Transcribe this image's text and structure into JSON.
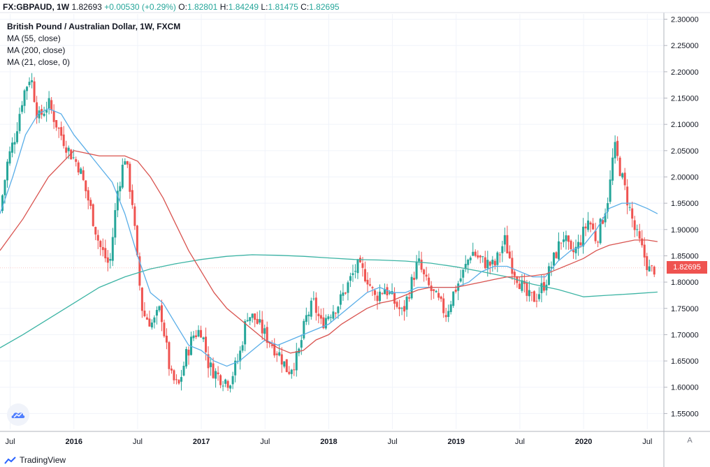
{
  "header": {
    "symbol": "FX:GBPAUD, 1W",
    "last": "1.82693",
    "change": "+0.00530 (+0.29%)",
    "o_label": "O:",
    "o_value": "1.82801",
    "h_label": "H:",
    "h_value": "1.84249",
    "l_label": "L:",
    "l_value": "1.81475",
    "c_label": "C:",
    "c_value": "1.82695"
  },
  "legend": {
    "title": "British Pound / Australian Dollar, 1W, FXCM",
    "ma1": "MA (55, close)",
    "ma2": "MA (200, close)",
    "ma3": "MA (21, close, 0)"
  },
  "price_tag": "1.82695",
  "axis_button": "A",
  "brand": "TradingView",
  "colors": {
    "up": "#26a69a",
    "down": "#ef5350",
    "ma55": "#5aaee8",
    "ma200": "#3cb4a4",
    "ma21": "#d9534f"
  },
  "chart_data": {
    "type": "candlestick",
    "title": "British Pound / Australian Dollar, 1W, FXCM",
    "ylim": [
      1.52,
      2.31
    ],
    "y_ticks": [
      "2.30000",
      "2.25000",
      "2.20000",
      "2.15000",
      "2.10000",
      "2.05000",
      "2.00000",
      "1.95000",
      "1.90000",
      "1.85000",
      "1.80000",
      "1.75000",
      "1.70000",
      "1.65000",
      "1.60000",
      "1.55000"
    ],
    "x_ticks": [
      "Jul",
      "2016",
      "Jul",
      "2017",
      "Jul",
      "2018",
      "Jul",
      "2019",
      "Jul",
      "2020",
      "Jul"
    ],
    "xlim": [
      2015.42,
      2020.63
    ],
    "x_tick_positions": [
      2015.5,
      2016.0,
      2016.5,
      2017.0,
      2017.5,
      2018.0,
      2018.5,
      2019.0,
      2019.5,
      2020.0,
      2020.5
    ],
    "close_path": [
      [
        2015.42,
        1.935
      ],
      [
        2015.48,
        2.03
      ],
      [
        2015.54,
        2.08
      ],
      [
        2015.6,
        2.155
      ],
      [
        2015.66,
        2.195
      ],
      [
        2015.72,
        2.11
      ],
      [
        2015.8,
        2.14
      ],
      [
        2015.88,
        2.09
      ],
      [
        2015.96,
        2.05
      ],
      [
        2016.04,
        2.02
      ],
      [
        2016.12,
        1.95
      ],
      [
        2016.2,
        1.87
      ],
      [
        2016.28,
        1.83
      ],
      [
        2016.34,
        1.97
      ],
      [
        2016.4,
        2.04
      ],
      [
        2016.46,
        1.95
      ],
      [
        2016.5,
        1.83
      ],
      [
        2016.54,
        1.74
      ],
      [
        2016.62,
        1.72
      ],
      [
        2016.68,
        1.75
      ],
      [
        2016.76,
        1.62
      ],
      [
        2016.82,
        1.6
      ],
      [
        2016.88,
        1.66
      ],
      [
        2016.94,
        1.7
      ],
      [
        2017.0,
        1.71
      ],
      [
        2017.06,
        1.64
      ],
      [
        2017.14,
        1.62
      ],
      [
        2017.22,
        1.61
      ],
      [
        2017.3,
        1.66
      ],
      [
        2017.36,
        1.74
      ],
      [
        2017.42,
        1.73
      ],
      [
        2017.5,
        1.7
      ],
      [
        2017.56,
        1.68
      ],
      [
        2017.62,
        1.66
      ],
      [
        2017.68,
        1.63
      ],
      [
        2017.76,
        1.66
      ],
      [
        2017.82,
        1.73
      ],
      [
        2017.88,
        1.76
      ],
      [
        2017.94,
        1.72
      ],
      [
        2018.0,
        1.74
      ],
      [
        2018.08,
        1.76
      ],
      [
        2018.16,
        1.8
      ],
      [
        2018.22,
        1.83
      ],
      [
        2018.3,
        1.81
      ],
      [
        2018.36,
        1.77
      ],
      [
        2018.44,
        1.79
      ],
      [
        2018.52,
        1.76
      ],
      [
        2018.58,
        1.74
      ],
      [
        2018.64,
        1.79
      ],
      [
        2018.7,
        1.84
      ],
      [
        2018.76,
        1.8
      ],
      [
        2018.84,
        1.77
      ],
      [
        2018.92,
        1.74
      ],
      [
        2018.98,
        1.78
      ],
      [
        2019.06,
        1.82
      ],
      [
        2019.12,
        1.86
      ],
      [
        2019.2,
        1.84
      ],
      [
        2019.3,
        1.83
      ],
      [
        2019.38,
        1.88
      ],
      [
        2019.44,
        1.83
      ],
      [
        2019.5,
        1.8
      ],
      [
        2019.56,
        1.77
      ],
      [
        2019.62,
        1.77
      ],
      [
        2019.7,
        1.8
      ],
      [
        2019.76,
        1.84
      ],
      [
        2019.84,
        1.89
      ],
      [
        2019.9,
        1.85
      ],
      [
        2019.96,
        1.87
      ],
      [
        2020.04,
        1.92
      ],
      [
        2020.1,
        1.88
      ],
      [
        2020.16,
        1.93
      ],
      [
        2020.2,
        1.97
      ],
      [
        2020.24,
        2.06
      ],
      [
        2020.3,
        2.0
      ],
      [
        2020.34,
        1.96
      ],
      [
        2020.4,
        1.9
      ],
      [
        2020.46,
        1.86
      ],
      [
        2020.52,
        1.82
      ],
      [
        2020.56,
        1.8269
      ]
    ],
    "ma55": [
      [
        2015.42,
        1.93
      ],
      [
        2015.52,
        2.0
      ],
      [
        2015.62,
        2.08
      ],
      [
        2015.72,
        2.12
      ],
      [
        2015.8,
        2.13
      ],
      [
        2015.9,
        2.12
      ],
      [
        2016.0,
        2.08
      ],
      [
        2016.1,
        2.05
      ],
      [
        2016.2,
        2.02
      ],
      [
        2016.3,
        1.99
      ],
      [
        2016.4,
        1.93
      ],
      [
        2016.5,
        1.85
      ],
      [
        2016.6,
        1.78
      ],
      [
        2016.7,
        1.76
      ],
      [
        2016.8,
        1.72
      ],
      [
        2016.9,
        1.68
      ],
      [
        2017.0,
        1.67
      ],
      [
        2017.1,
        1.65
      ],
      [
        2017.2,
        1.64
      ],
      [
        2017.3,
        1.65
      ],
      [
        2017.4,
        1.67
      ],
      [
        2017.5,
        1.69
      ],
      [
        2017.6,
        1.68
      ],
      [
        2017.7,
        1.69
      ],
      [
        2017.8,
        1.7
      ],
      [
        2017.9,
        1.71
      ],
      [
        2018.0,
        1.72
      ],
      [
        2018.1,
        1.74
      ],
      [
        2018.2,
        1.76
      ],
      [
        2018.3,
        1.78
      ],
      [
        2018.4,
        1.79
      ],
      [
        2018.5,
        1.78
      ],
      [
        2018.6,
        1.78
      ],
      [
        2018.7,
        1.79
      ],
      [
        2018.8,
        1.79
      ],
      [
        2018.9,
        1.79
      ],
      [
        2019.0,
        1.79
      ],
      [
        2019.1,
        1.8
      ],
      [
        2019.2,
        1.82
      ],
      [
        2019.3,
        1.83
      ],
      [
        2019.4,
        1.83
      ],
      [
        2019.5,
        1.82
      ],
      [
        2019.6,
        1.81
      ],
      [
        2019.7,
        1.81
      ],
      [
        2019.8,
        1.84
      ],
      [
        2019.9,
        1.86
      ],
      [
        2020.0,
        1.87
      ],
      [
        2020.1,
        1.9
      ],
      [
        2020.2,
        1.94
      ],
      [
        2020.3,
        1.95
      ],
      [
        2020.4,
        1.95
      ],
      [
        2020.5,
        1.94
      ],
      [
        2020.58,
        1.93
      ]
    ],
    "ma200": [
      [
        2015.42,
        1.675
      ],
      [
        2015.6,
        1.7
      ],
      [
        2015.8,
        1.73
      ],
      [
        2016.0,
        1.76
      ],
      [
        2016.2,
        1.79
      ],
      [
        2016.4,
        1.81
      ],
      [
        2016.6,
        1.825
      ],
      [
        2016.8,
        1.835
      ],
      [
        2017.0,
        1.843
      ],
      [
        2017.2,
        1.849
      ],
      [
        2017.4,
        1.852
      ],
      [
        2017.6,
        1.851
      ],
      [
        2017.8,
        1.849
      ],
      [
        2018.0,
        1.846
      ],
      [
        2018.2,
        1.843
      ],
      [
        2018.4,
        1.842
      ],
      [
        2018.6,
        1.84
      ],
      [
        2018.8,
        1.836
      ],
      [
        2019.0,
        1.829
      ],
      [
        2019.2,
        1.82
      ],
      [
        2019.4,
        1.81
      ],
      [
        2019.6,
        1.796
      ],
      [
        2019.8,
        1.786
      ],
      [
        2020.0,
        1.772
      ],
      [
        2020.2,
        1.775
      ],
      [
        2020.4,
        1.778
      ],
      [
        2020.58,
        1.781
      ]
    ],
    "ma21": [
      [
        2015.42,
        1.86
      ],
      [
        2015.6,
        1.92
      ],
      [
        2015.8,
        2.0
      ],
      [
        2016.0,
        2.05
      ],
      [
        2016.2,
        2.04
      ],
      [
        2016.4,
        2.04
      ],
      [
        2016.5,
        2.03
      ],
      [
        2016.6,
        2.0
      ],
      [
        2016.7,
        1.96
      ],
      [
        2016.8,
        1.91
      ],
      [
        2016.9,
        1.86
      ],
      [
        2017.0,
        1.82
      ],
      [
        2017.1,
        1.78
      ],
      [
        2017.2,
        1.75
      ],
      [
        2017.3,
        1.73
      ],
      [
        2017.4,
        1.71
      ],
      [
        2017.5,
        1.69
      ],
      [
        2017.6,
        1.675
      ],
      [
        2017.7,
        1.665
      ],
      [
        2017.8,
        1.67
      ],
      [
        2017.9,
        1.69
      ],
      [
        2018.0,
        1.7
      ],
      [
        2018.1,
        1.72
      ],
      [
        2018.2,
        1.735
      ],
      [
        2018.3,
        1.75
      ],
      [
        2018.4,
        1.76
      ],
      [
        2018.5,
        1.765
      ],
      [
        2018.6,
        1.775
      ],
      [
        2018.7,
        1.785
      ],
      [
        2018.8,
        1.79
      ],
      [
        2018.9,
        1.79
      ],
      [
        2019.0,
        1.79
      ],
      [
        2019.1,
        1.795
      ],
      [
        2019.2,
        1.8
      ],
      [
        2019.3,
        1.805
      ],
      [
        2019.4,
        1.81
      ],
      [
        2019.5,
        1.81
      ],
      [
        2019.6,
        1.812
      ],
      [
        2019.7,
        1.815
      ],
      [
        2019.8,
        1.825
      ],
      [
        2019.9,
        1.835
      ],
      [
        2020.0,
        1.845
      ],
      [
        2020.1,
        1.86
      ],
      [
        2020.2,
        1.87
      ],
      [
        2020.3,
        1.875
      ],
      [
        2020.4,
        1.88
      ],
      [
        2020.5,
        1.88
      ],
      [
        2020.58,
        1.877
      ]
    ]
  }
}
